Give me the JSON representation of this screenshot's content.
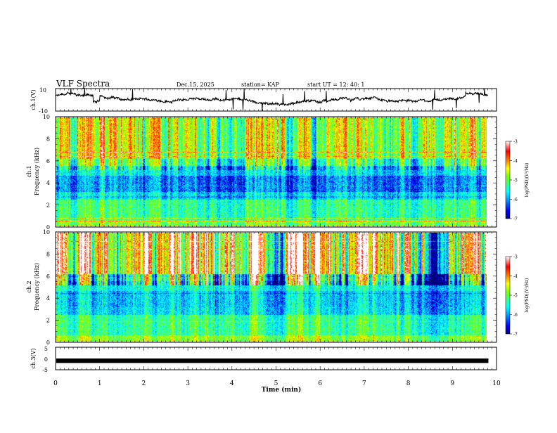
{
  "header": {
    "title": "VLF Spectra",
    "date": "Dec.15, 2025",
    "station": "station= KAP",
    "start": "start  UT =   12: 40: 1"
  },
  "chart_data": {
    "type": "heatmap",
    "x_axis": {
      "label": "Time  (min)",
      "range": [
        0,
        10
      ],
      "ticks": [
        "0",
        "1",
        "2",
        "3",
        "4",
        "5",
        "6",
        "7",
        "8",
        "9",
        "10"
      ],
      "data_end": 9.8
    },
    "panels": [
      {
        "id": "ch1-waveform",
        "type": "line",
        "ylabel": "ch.1(V)",
        "ylim": [
          -10,
          10
        ],
        "yticks": [
          "10",
          "-10"
        ],
        "baseline": 0,
        "amplitude": 4
      },
      {
        "id": "ch1-spectrogram",
        "type": "heatmap",
        "ylabel": "ch.1\nFrequency (kHz)",
        "ylabel_line1": "ch.1",
        "ylabel_line2": "Frequency (kHz)",
        "ylim": [
          0,
          10
        ],
        "yticks": [
          "0",
          "2",
          "4",
          "6",
          "8",
          "10"
        ],
        "colorbar": {
          "label": "log(PSD)(V²/Hz)",
          "range": [
            -7,
            -3
          ],
          "ticks": [
            "-3",
            "-4",
            "-5",
            "-6",
            "-7"
          ]
        }
      },
      {
        "id": "ch2-spectrogram",
        "type": "heatmap",
        "ylabel_line1": "ch.2",
        "ylabel_line2": "Frequency (kHz)",
        "ylim": [
          0,
          10
        ],
        "yticks": [
          "0",
          "2",
          "4",
          "6",
          "8",
          "10"
        ],
        "colorbar": {
          "label": "log(PSD)(V²/Hz)",
          "range": [
            -7,
            -3
          ],
          "ticks": [
            "-3",
            "-4",
            "-5",
            "-6",
            "-7"
          ]
        }
      },
      {
        "id": "ch3-waveform",
        "type": "line",
        "ylabel": "ch.3(V)",
        "ylim": [
          -5,
          5
        ],
        "yticks": [
          "5",
          "0",
          "-5"
        ],
        "baseline": -1
      }
    ]
  },
  "colors": {
    "colormap": [
      "#000080",
      "#0000ff",
      "#00a0ff",
      "#00ffff",
      "#40ff80",
      "#80ff00",
      "#ffff00",
      "#ff8000",
      "#ff0000",
      "#ffffff"
    ],
    "trace": "#000000",
    "frame": "#000000"
  }
}
